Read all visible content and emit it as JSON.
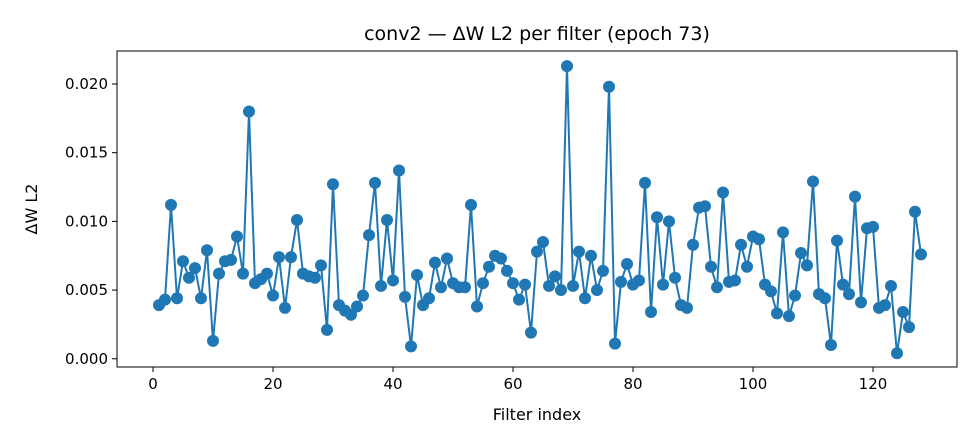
{
  "chart_data": {
    "type": "line",
    "title": "conv2 — ΔW L2 per filter (epoch 73)",
    "xlabel": "Filter index",
    "ylabel": "ΔW L2",
    "xlim": [
      -6,
      134
    ],
    "ylim": [
      -0.0006,
      0.0224
    ],
    "xticks": [
      0,
      20,
      40,
      60,
      80,
      100,
      120
    ],
    "yticks": [
      0.0,
      0.005,
      0.01,
      0.015,
      0.02
    ],
    "ytick_labels": [
      "0.000",
      "0.005",
      "0.010",
      "0.015",
      "0.020"
    ],
    "grid": false,
    "color": "#1f77b4",
    "marker": "circle",
    "x": [
      1,
      2,
      3,
      4,
      5,
      6,
      7,
      8,
      9,
      10,
      11,
      12,
      13,
      14,
      15,
      16,
      17,
      18,
      19,
      20,
      21,
      22,
      23,
      24,
      25,
      26,
      27,
      28,
      29,
      30,
      31,
      32,
      33,
      34,
      35,
      36,
      37,
      38,
      39,
      40,
      41,
      42,
      43,
      44,
      45,
      46,
      47,
      48,
      49,
      50,
      51,
      52,
      53,
      54,
      55,
      56,
      57,
      58,
      59,
      60,
      61,
      62,
      63,
      64,
      65,
      66,
      67,
      68,
      69,
      70,
      71,
      72,
      73,
      74,
      75,
      76,
      77,
      78,
      79,
      80,
      81,
      82,
      83,
      84,
      85,
      86,
      87,
      88,
      89,
      90,
      91,
      92,
      93,
      94,
      95,
      96,
      97,
      98,
      99,
      100,
      101,
      102,
      103,
      104,
      105,
      106,
      107,
      108,
      109,
      110,
      111,
      112,
      113,
      114,
      115,
      116,
      117,
      118,
      119,
      120,
      121,
      122,
      123,
      124,
      125,
      126,
      127,
      128
    ],
    "y": [
      0.0039,
      0.0043,
      0.0112,
      0.0044,
      0.0071,
      0.0059,
      0.0066,
      0.0044,
      0.0079,
      0.0013,
      0.0062,
      0.0071,
      0.0072,
      0.0089,
      0.0062,
      0.018,
      0.0055,
      0.0058,
      0.0062,
      0.0046,
      0.0074,
      0.0037,
      0.0074,
      0.0101,
      0.0062,
      0.006,
      0.0059,
      0.0068,
      0.0021,
      0.0127,
      0.0039,
      0.0035,
      0.0032,
      0.0038,
      0.0046,
      0.009,
      0.0128,
      0.0053,
      0.0101,
      0.0057,
      0.0137,
      0.0045,
      0.0009,
      0.0061,
      0.0039,
      0.0044,
      0.007,
      0.0052,
      0.0073,
      0.0055,
      0.0052,
      0.0052,
      0.0112,
      0.0038,
      0.0055,
      0.0067,
      0.0075,
      0.0073,
      0.0064,
      0.0055,
      0.0043,
      0.0054,
      0.0019,
      0.0078,
      0.0085,
      0.0053,
      0.006,
      0.005,
      0.0213,
      0.0053,
      0.0078,
      0.0044,
      0.0075,
      0.005,
      0.0064,
      0.0198,
      0.0011,
      0.0056,
      0.0069,
      0.0054,
      0.0057,
      0.0128,
      0.0034,
      0.0103,
      0.0054,
      0.01,
      0.0059,
      0.0039,
      0.0037,
      0.0083,
      0.011,
      0.0111,
      0.0067,
      0.0052,
      0.0121,
      0.0056,
      0.0057,
      0.0083,
      0.0067,
      0.0089,
      0.0087,
      0.0054,
      0.0049,
      0.0033,
      0.0092,
      0.0031,
      0.0046,
      0.0077,
      0.0068,
      0.0129,
      0.0047,
      0.0044,
      0.001,
      0.0086,
      0.0054,
      0.0047,
      0.0118,
      0.0041,
      0.0095,
      0.0096,
      0.0037,
      0.0039,
      0.0053,
      0.0004,
      0.0034,
      0.0023,
      0.0107,
      0.0076
    ]
  }
}
